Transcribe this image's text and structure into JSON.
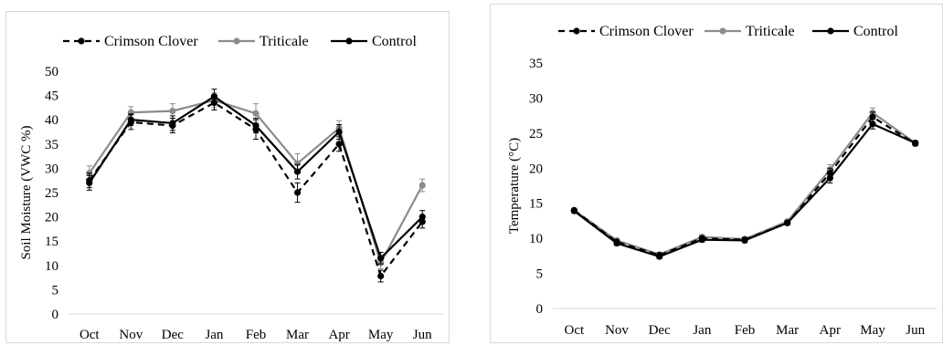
{
  "chart_data": [
    {
      "type": "line",
      "title": "",
      "xlabel": "",
      "ylabel": "Soil Moisture (VWC %)",
      "ylim": [
        0,
        50
      ],
      "yticks": [
        0,
        5,
        10,
        15,
        20,
        25,
        30,
        35,
        40,
        45,
        50
      ],
      "grid": false,
      "legend": "top",
      "categories": [
        "Oct",
        "Nov",
        "Dec",
        "Jan",
        "Feb",
        "Mar",
        "Apr",
        "May",
        "Jun"
      ],
      "series": [
        {
          "name": "Crimson Clover",
          "values": [
            27.5,
            39.5,
            38.8,
            43.5,
            38.0,
            25.0,
            35.0,
            7.8,
            19.0
          ],
          "color": "#000000",
          "dash": true
        },
        {
          "name": "Triticale",
          "values": [
            29.0,
            41.5,
            41.8,
            44.0,
            41.3,
            31.0,
            38.3,
            10.5,
            26.5
          ],
          "color": "#8c8c8c",
          "dash": false
        },
        {
          "name": "Control",
          "values": [
            27.0,
            40.0,
            39.3,
            44.8,
            38.8,
            29.3,
            37.5,
            11.5,
            20.0
          ],
          "color": "#000000",
          "dash": false
        }
      ],
      "error_bars": [
        [
          1.5,
          1.5,
          1.5,
          1.5,
          2.0,
          2.0,
          1.5,
          1.2,
          1.3
        ],
        [
          1.5,
          1.2,
          1.5,
          1.5,
          2.0,
          2.0,
          1.5,
          1.2,
          1.3
        ],
        [
          1.5,
          1.2,
          1.5,
          1.5,
          1.5,
          1.5,
          1.5,
          1.2,
          1.3
        ]
      ]
    },
    {
      "type": "line",
      "title": "",
      "xlabel": "",
      "ylabel": "Temperature (°C)",
      "ylim": [
        0,
        35
      ],
      "yticks": [
        0,
        5,
        10,
        15,
        20,
        25,
        30,
        35
      ],
      "grid": false,
      "legend": "top",
      "categories": [
        "Oct",
        "Nov",
        "Dec",
        "Jan",
        "Feb",
        "Mar",
        "Apr",
        "May",
        "Jun"
      ],
      "series": [
        {
          "name": "Crimson Clover",
          "values": [
            14.0,
            9.5,
            7.6,
            10.0,
            9.8,
            12.2,
            19.3,
            27.3,
            23.5
          ],
          "color": "#000000",
          "dash": true
        },
        {
          "name": "Triticale",
          "values": [
            14.0,
            9.7,
            7.7,
            10.2,
            9.9,
            12.4,
            19.8,
            27.9,
            23.6
          ],
          "color": "#8c8c8c",
          "dash": false
        },
        {
          "name": "Control",
          "values": [
            13.9,
            9.3,
            7.4,
            9.8,
            9.7,
            12.2,
            18.6,
            26.3,
            23.6
          ],
          "color": "#000000",
          "dash": false
        }
      ],
      "error_bars": [
        [
          0.2,
          0.3,
          0.3,
          0.3,
          0.3,
          0.3,
          0.7,
          0.7,
          0.3
        ],
        [
          0.2,
          0.3,
          0.3,
          0.3,
          0.3,
          0.3,
          0.7,
          0.7,
          0.3
        ],
        [
          0.2,
          0.3,
          0.3,
          0.3,
          0.3,
          0.3,
          0.7,
          0.7,
          0.3
        ]
      ]
    }
  ]
}
